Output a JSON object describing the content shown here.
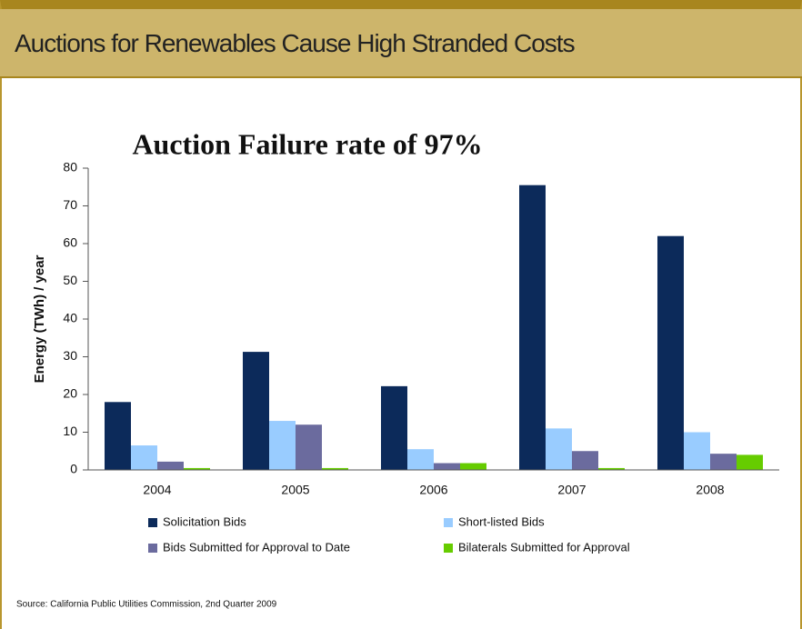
{
  "header": {
    "title": "Auctions for Renewables Cause High Stranded Costs"
  },
  "chart_data": {
    "type": "bar",
    "title": "Auction Failure rate of 97%",
    "y_label": "Energy (TWh) / year",
    "categories": [
      "2004",
      "2005",
      "2006",
      "2007",
      "2008"
    ],
    "series": [
      {
        "name": "Solicitation Bids",
        "color": "#0c2a5a",
        "values": [
          18,
          31.3,
          22.2,
          75.5,
          62
        ]
      },
      {
        "name": "Short-listed Bids",
        "color": "#99ccff",
        "values": [
          6.5,
          13,
          5.5,
          11,
          10
        ]
      },
      {
        "name": "Bids Submitted for Approval to Date",
        "color": "#6b6b9e",
        "values": [
          2.2,
          12,
          1.8,
          5,
          4.3
        ]
      },
      {
        "name": "Bilaterals Submitted for Approval",
        "color": "#66cc00",
        "values": [
          0.5,
          0.5,
          1.8,
          0.5,
          4
        ]
      }
    ],
    "ylim": [
      0,
      80
    ],
    "yticks": [
      0,
      10,
      20,
      30,
      40,
      50,
      60,
      70,
      80
    ],
    "source": "Source: California Public Utilities Commission, 2nd Quarter 2009"
  }
}
